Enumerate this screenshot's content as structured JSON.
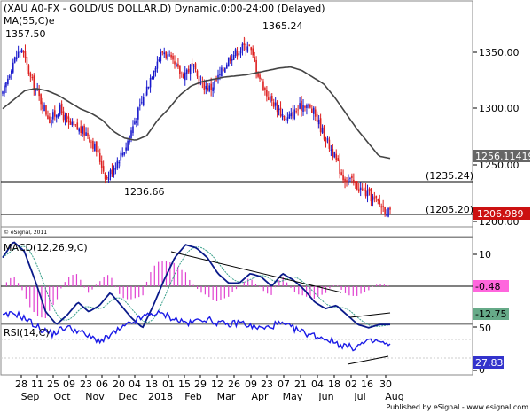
{
  "header": {
    "title": "(XAU A0-FX - GOLD/US DOLLAR,D) Dynamic,0:00-24:00 (Delayed)",
    "ma_label": "MA(55,C)e"
  },
  "annotations": {
    "high_left": "1357.50",
    "high_mid": "1365.24",
    "low_left": "1236.66",
    "level_1235": "(1235.24)",
    "level_1205": "(1205.20)"
  },
  "credit": "© eSignal, 2011",
  "footer": "Published by eSignal - www.esignal.com",
  "colors": {
    "up": "#1a1acc",
    "down": "#dd1f1f",
    "ma": "#444444",
    "macd": "#0a1a8a",
    "signal": "#3aa08a",
    "hist": "#e040d0",
    "rsi": "#1a1ae6",
    "last_price_bg": "#cc1111",
    "ma_value_bg": "#666666",
    "macd_value_bg": "#ff66dd",
    "signal_value_bg": "#66aa88",
    "rsi_value_bg": "#3333cc"
  },
  "chart_data": {
    "type": "candlestick",
    "price_axis": {
      "ticks": [
        "1350.00",
        "1300.00",
        "1250.00",
        "1200.00"
      ],
      "ylim": [
        1193,
        1386
      ]
    },
    "last_values": {
      "price": "1206.989",
      "ma": "1256.11419"
    },
    "horizontal_levels": [
      1235.24,
      1205.2
    ],
    "x_ticks": [
      {
        "label": "28",
        "month": "Sep"
      },
      {
        "label": "11",
        "month": ""
      },
      {
        "label": "25",
        "month": "Oct"
      },
      {
        "label": "09",
        "month": ""
      },
      {
        "label": "23",
        "month": "Nov"
      },
      {
        "label": "06",
        "month": ""
      },
      {
        "label": "20",
        "month": "Dec"
      },
      {
        "label": "04",
        "month": ""
      },
      {
        "label": "18",
        "month": "2018"
      },
      {
        "label": "01",
        "month": ""
      },
      {
        "label": "15",
        "month": "Feb"
      },
      {
        "label": "29",
        "month": ""
      },
      {
        "label": "12",
        "month": "Mar"
      },
      {
        "label": "26",
        "month": ""
      },
      {
        "label": "09",
        "month": "Apr"
      },
      {
        "label": "23",
        "month": ""
      },
      {
        "label": "07",
        "month": "May"
      },
      {
        "label": "21",
        "month": ""
      },
      {
        "label": "04",
        "month": "Jun"
      },
      {
        "label": "18",
        "month": ""
      },
      {
        "label": "02",
        "month": "Jul"
      },
      {
        "label": "16",
        "month": ""
      },
      {
        "label": "30",
        "month": "Aug"
      }
    ],
    "close_anchors": [
      1312,
      1340,
      1354,
      1326,
      1308,
      1290,
      1300,
      1286,
      1282,
      1278,
      1262,
      1238,
      1252,
      1266,
      1290,
      1312,
      1337,
      1352,
      1340,
      1330,
      1338,
      1322,
      1318,
      1330,
      1346,
      1352,
      1358,
      1332,
      1312,
      1302,
      1290,
      1298,
      1305,
      1296,
      1277,
      1260,
      1240,
      1235,
      1228,
      1222,
      1215,
      1207
    ],
    "ma_anchors": [
      1300,
      1308,
      1316,
      1318,
      1316,
      1312,
      1306,
      1300,
      1296,
      1290,
      1280,
      1274,
      1272,
      1276,
      1290,
      1300,
      1312,
      1320,
      1324,
      1326,
      1328,
      1329,
      1330,
      1332,
      1334,
      1336,
      1337,
      1334,
      1328,
      1322,
      1310,
      1296,
      1282,
      1270,
      1258,
      1256
    ],
    "macd": {
      "label": "MACD(12,26,9,C)",
      "ticks": [
        "10",
        "0"
      ],
      "ylim": [
        -14.5,
        16
      ],
      "values_text": {
        "macd": "-0.48",
        "signal": "-12.75"
      },
      "macd_anchors": [
        9,
        14,
        11,
        2,
        -8,
        -12,
        -9,
        -5,
        -8,
        -6,
        -2,
        -6,
        -10,
        -13,
        -6,
        2,
        9,
        13,
        12,
        9,
        4,
        1,
        1,
        4,
        3,
        0,
        4,
        2,
        -1,
        -5,
        -7,
        -6,
        -9,
        -12,
        -13,
        -12,
        -12
      ],
      "trendline": {
        "from": [
          0.44,
          13
        ],
        "to": [
          0.67,
          0
        ],
        "comment": "drawn trendline"
      }
    },
    "rsi": {
      "label": "RSI(14,C)",
      "ticks": [
        "50",
        "0"
      ],
      "ylim": [
        -5,
        105
      ],
      "value_text": "27.83",
      "rsi_anchors": [
        62,
        66,
        58,
        48,
        42,
        50,
        46,
        38,
        34,
        44,
        52,
        60,
        66,
        64,
        58,
        54,
        60,
        56,
        52,
        56,
        50,
        48,
        54,
        50,
        44,
        40,
        36,
        30,
        26,
        32,
        34,
        28
      ],
      "bands": [
        70,
        30
      ]
    }
  }
}
